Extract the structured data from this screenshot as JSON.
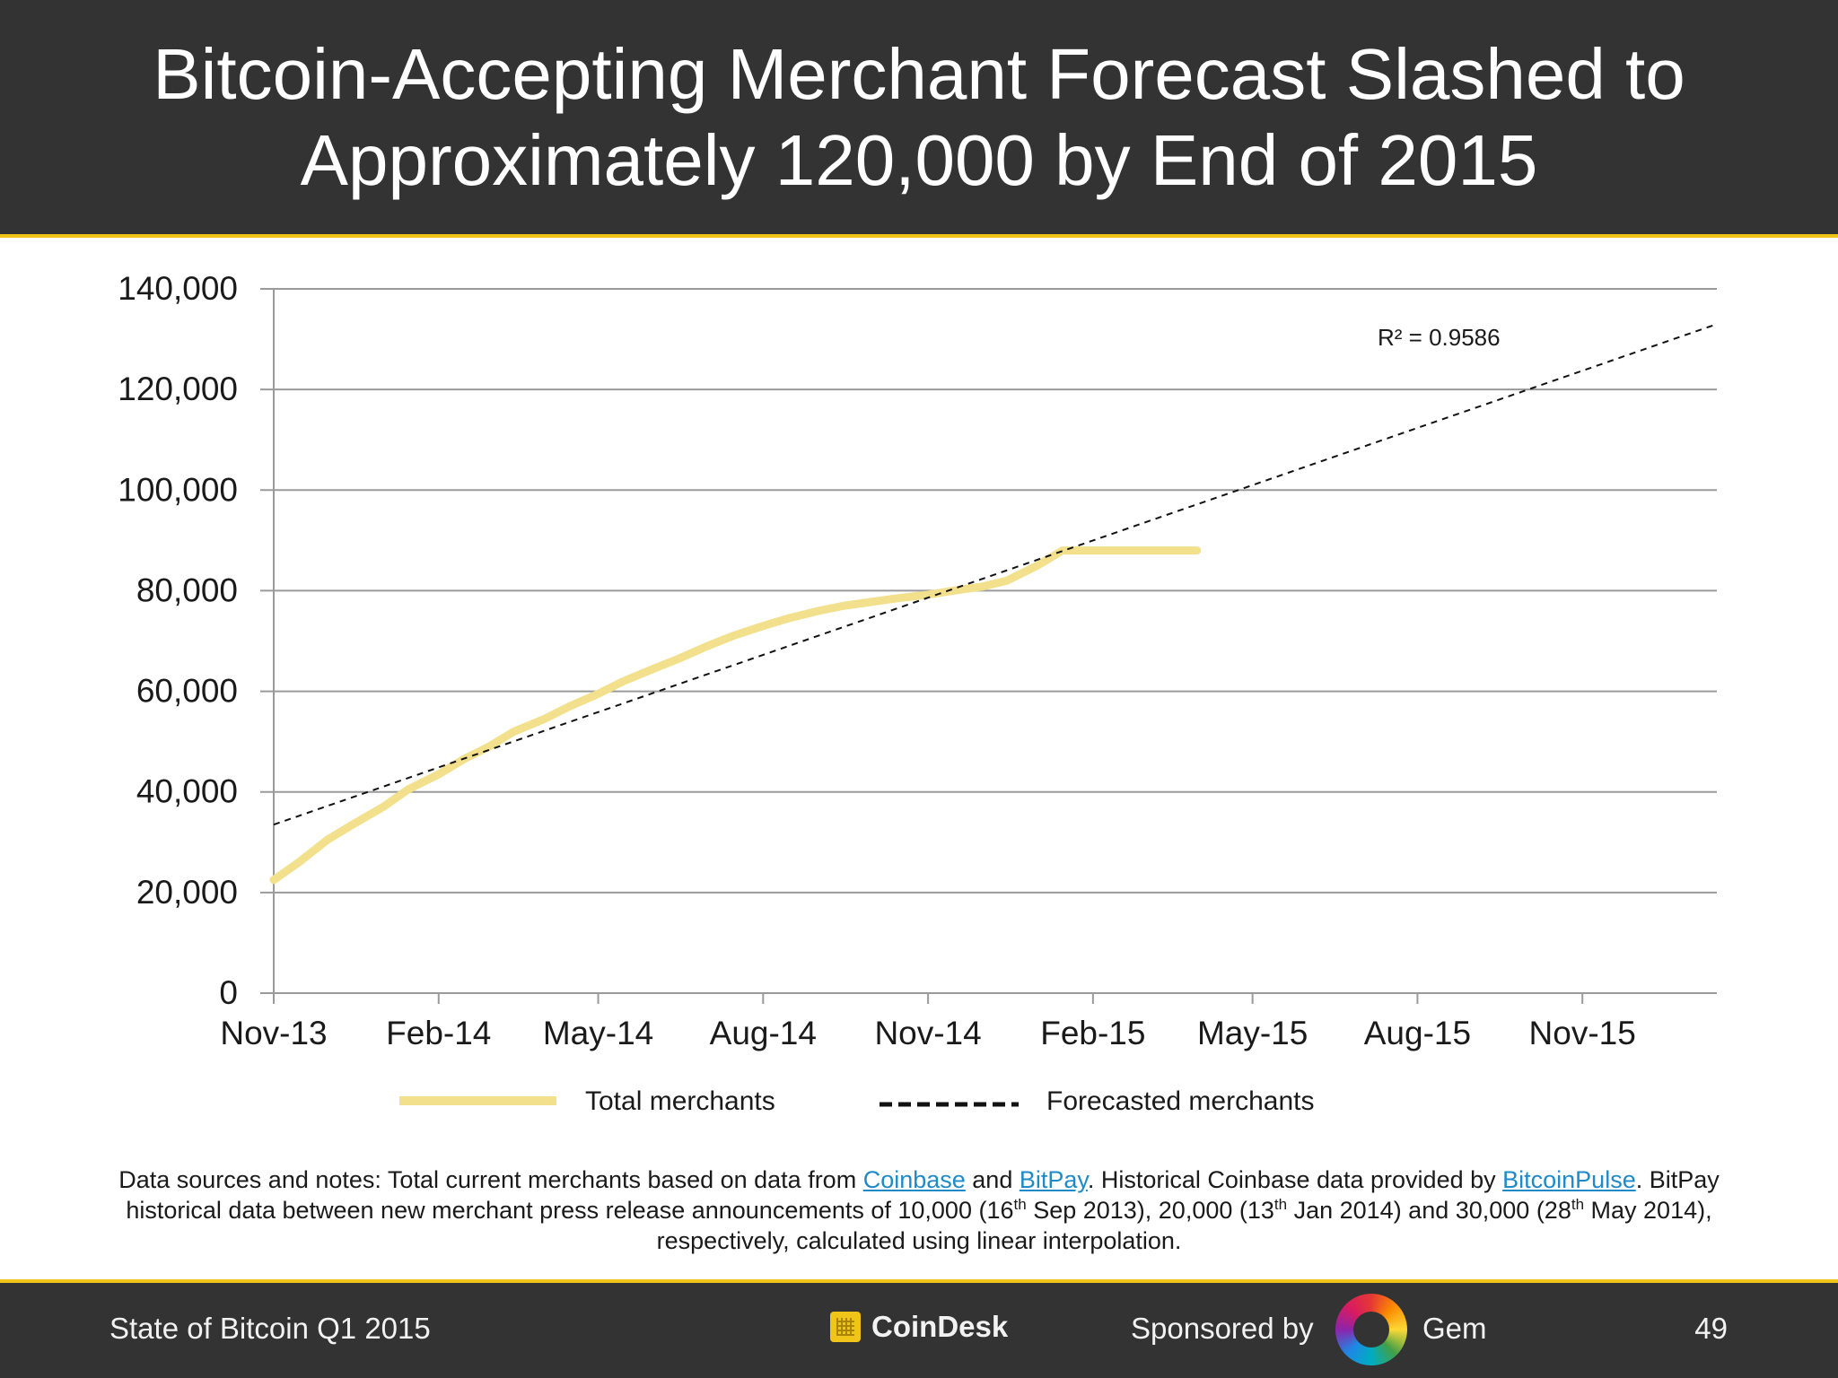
{
  "header": {
    "title": "Bitcoin-Accepting Merchant Forecast Slashed to Approximately 120,000 by End of 2015"
  },
  "notes": {
    "prefix": "Data sources and notes: Total current merchants based on data from ",
    "link_coinbase": "Coinbase",
    "and": " and ",
    "link_bitpay": "BitPay",
    "mid1": ". Historical Coinbase data provided by ",
    "link_bitcoinpulse": "BitcoinPulse",
    "mid2": ". BitPay historical data between new merchant press release announcements of 10,000 (16",
    "sup1": "th",
    "mid3": " Sep 2013), 20,000 (13",
    "sup2": "th",
    "mid4": " Jan 2014) and 30,000 (28",
    "sup3": "th",
    "suffix": " May 2014), respectively, calculated using linear interpolation.",
    "link_color": "#1f8ac6"
  },
  "footer": {
    "left": "State of Bitcoin Q1 2015",
    "logo": "CoinDesk",
    "sponsored": "Sponsored by",
    "sponsor": "Gem",
    "page": "49"
  },
  "colors": {
    "header_bg": "#333333",
    "accent": "#f0c419",
    "series_total": "#f2e08c",
    "series_forecast": "#111111"
  },
  "chart_data": {
    "type": "line",
    "x_tick_labels": [
      "Nov-13",
      "Feb-14",
      "May-14",
      "Aug-14",
      "Nov-14",
      "Feb-15",
      "May-15",
      "Aug-15",
      "Nov-15"
    ],
    "x_range": [
      "2013-11-01",
      "2016-01-15"
    ],
    "y_tick_labels": [
      "0",
      "20,000",
      "40,000",
      "60,000",
      "80,000",
      "100,000",
      "120,000",
      "140,000"
    ],
    "ylim": [
      0,
      140000
    ],
    "grid": true,
    "legend_position": "bottom",
    "series": [
      {
        "name": "Total merchants",
        "style": "solid",
        "points": [
          [
            "2013-11-01",
            22500
          ],
          [
            "2013-11-15",
            26000
          ],
          [
            "2013-12-01",
            30500
          ],
          [
            "2013-12-15",
            33500
          ],
          [
            "2014-01-01",
            37000
          ],
          [
            "2014-01-15",
            40500
          ],
          [
            "2014-02-01",
            43500
          ],
          [
            "2014-02-15",
            46500
          ],
          [
            "2014-03-01",
            49000
          ],
          [
            "2014-03-15",
            52000
          ],
          [
            "2014-04-01",
            54500
          ],
          [
            "2014-04-15",
            57000
          ],
          [
            "2014-05-01",
            59500
          ],
          [
            "2014-05-15",
            62000
          ],
          [
            "2014-06-01",
            64500
          ],
          [
            "2014-06-15",
            66500
          ],
          [
            "2014-07-01",
            69000
          ],
          [
            "2014-07-15",
            71000
          ],
          [
            "2014-08-01",
            73000
          ],
          [
            "2014-08-15",
            74500
          ],
          [
            "2014-09-01",
            76000
          ],
          [
            "2014-09-15",
            77000
          ],
          [
            "2014-10-01",
            77800
          ],
          [
            "2014-10-15",
            78500
          ],
          [
            "2014-11-01",
            79200
          ],
          [
            "2014-11-15",
            80000
          ],
          [
            "2014-12-01",
            80800
          ],
          [
            "2014-12-15",
            82000
          ],
          [
            "2015-01-01",
            85000
          ],
          [
            "2015-01-15",
            88000
          ],
          [
            "2015-02-01",
            88000
          ],
          [
            "2015-03-01",
            88000
          ],
          [
            "2015-03-31",
            88000
          ]
        ]
      },
      {
        "name": "Forecasted merchants",
        "style": "dashed",
        "points": [
          [
            "2013-11-01",
            33500
          ],
          [
            "2016-01-15",
            133000
          ]
        ]
      }
    ],
    "annotation": "R² = 0.9586"
  }
}
